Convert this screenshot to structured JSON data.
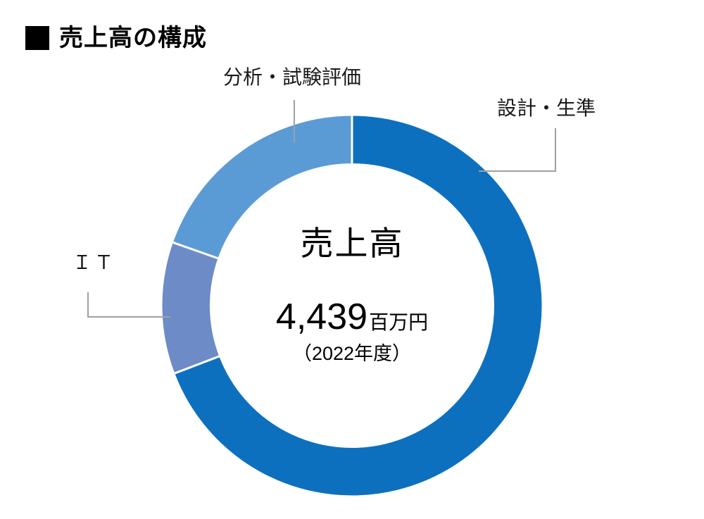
{
  "page": {
    "title": "売上高の構成"
  },
  "chart_data": {
    "type": "pie",
    "subtype": "donut",
    "title": "売上高の構成",
    "start_angle_deg": 0,
    "direction": "clockwise",
    "donut_hole_ratio": 0.74,
    "legend_position": "none",
    "labels_style": "external-callouts",
    "segments": [
      {
        "label": "設計・生準",
        "percent": 69.2,
        "color": "#0d70bf"
      },
      {
        "label": "ＩＴ",
        "percent": 11.2,
        "color": "#6c8bc7"
      },
      {
        "label": "分析・試験評価",
        "percent": 19.6,
        "color": "#5b9bd5"
      }
    ],
    "center": {
      "label": "売上高",
      "value": "4,439",
      "unit": "百万円",
      "note": "（2022年度）"
    }
  },
  "colors": {
    "background": "#ffffff",
    "text": "#000000",
    "leader_line": "#a0a0a0",
    "segment_gap": "#ffffff"
  }
}
